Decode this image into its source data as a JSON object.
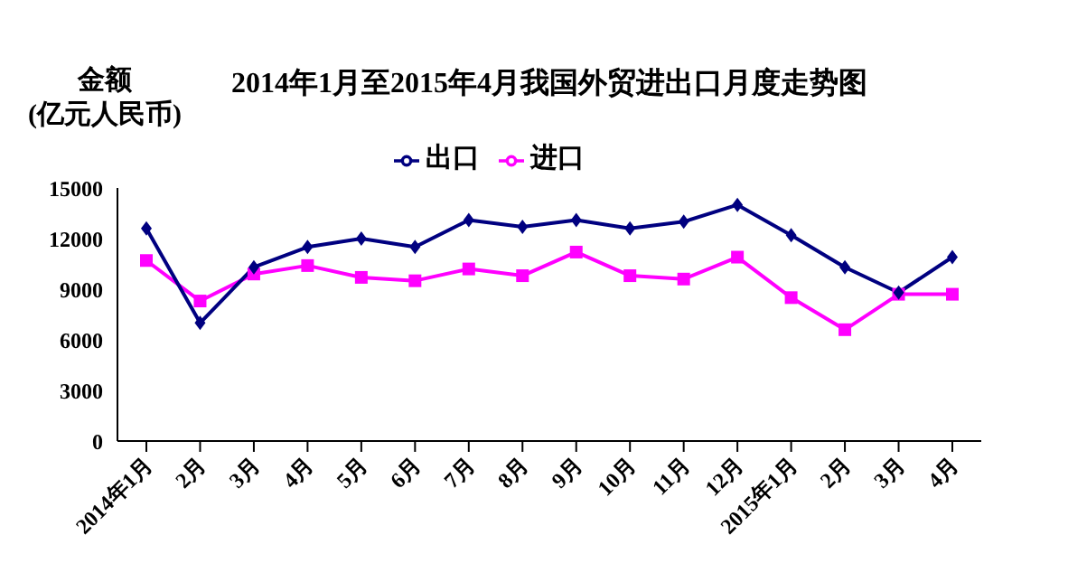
{
  "chart_data": {
    "type": "line",
    "title": "2014年1月至2015年4月我国外贸进出口月度走势图",
    "ylabel": "金额\n(亿元人民币)",
    "categories": [
      "2014年1月",
      "2月",
      "3月",
      "4月",
      "5月",
      "6月",
      "7月",
      "8月",
      "9月",
      "10月",
      "11月",
      "12月",
      "2015年1月",
      "2月",
      "3月",
      "4月"
    ],
    "series": [
      {
        "name": "出口",
        "color": "#000080",
        "marker": "diamond",
        "values": [
          12600,
          7000,
          10300,
          11500,
          12000,
          11500,
          13100,
          12700,
          13100,
          12600,
          13000,
          14000,
          12200,
          10300,
          8800,
          10900
        ]
      },
      {
        "name": "进口",
        "color": "#ff00ff",
        "marker": "square",
        "values": [
          10700,
          8300,
          9900,
          10400,
          9700,
          9500,
          10200,
          9800,
          11200,
          9800,
          9600,
          10900,
          8500,
          6600,
          8700,
          8700
        ]
      }
    ],
    "ylim": [
      0,
      15000
    ],
    "yticks": [
      0,
      3000,
      6000,
      9000,
      12000,
      15000
    ],
    "grid": false,
    "legend": "top"
  }
}
